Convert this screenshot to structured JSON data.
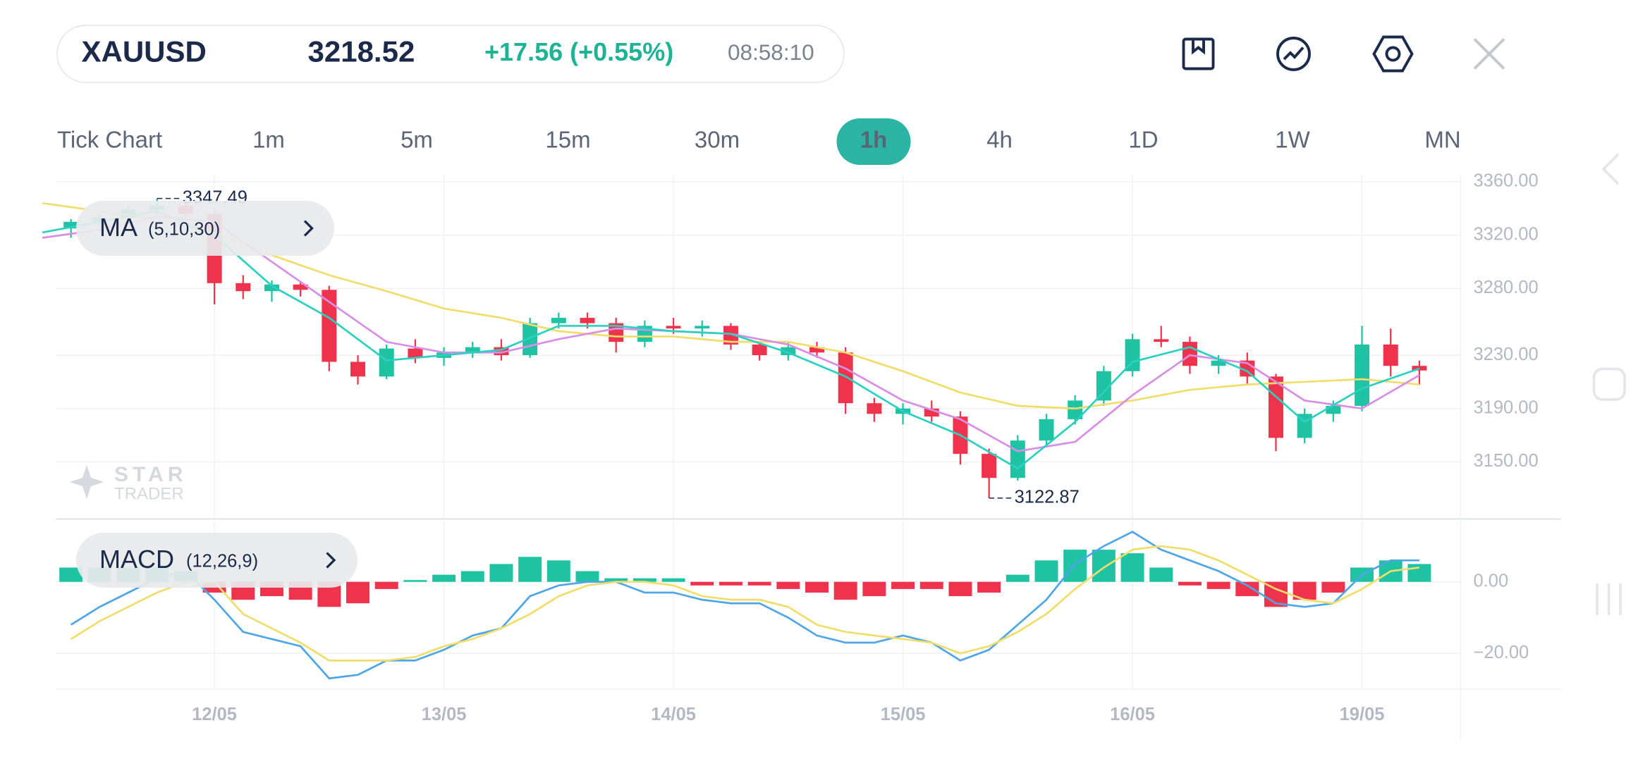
{
  "header": {
    "symbol": "XAUUSD",
    "price": "3218.52",
    "change": "+17.56 (+0.55%)",
    "time": "08:58:10"
  },
  "timeframes": [
    "Tick Chart",
    "1m",
    "5m",
    "15m",
    "30m",
    "1h",
    "4h",
    "1D",
    "1W",
    "MN"
  ],
  "selected_timeframe": "1h",
  "watermark": {
    "line1": "STAR",
    "line2": "TRADER"
  },
  "chart_data": [
    {
      "type": "candlestick",
      "indicator": "MA",
      "indicator_params": "(5,10,30)",
      "up_color": "#1fc3a4",
      "down_color": "#f0334d",
      "x": [
        -0.625,
        -0.5,
        -0.375,
        -0.25,
        -0.125,
        0,
        0.125,
        0.25,
        0.375,
        0.5,
        0.625,
        0.75,
        0.875,
        1,
        1.125,
        1.25,
        1.375,
        1.5,
        1.625,
        1.75,
        1.875,
        2,
        2.125,
        2.25,
        2.375,
        2.5,
        2.625,
        2.75,
        2.875,
        3,
        3.125,
        3.25,
        3.375,
        3.5,
        3.625,
        3.75,
        3.875,
        4,
        4.125,
        4.25,
        4.375,
        4.5,
        4.625,
        4.75,
        4.875,
        5,
        5.125,
        5.25
      ],
      "open": [
        3325,
        3330,
        3333,
        3339,
        3342,
        3336,
        3284,
        3278,
        3283,
        3279,
        3225,
        3214,
        3235,
        3228,
        3232,
        3236,
        3230,
        3254,
        3258,
        3254,
        3240,
        3252,
        3250,
        3252,
        3238,
        3230,
        3236,
        3232,
        3194,
        3186,
        3190,
        3184,
        3156,
        3138,
        3166,
        3182,
        3196,
        3218,
        3242,
        3240,
        3222,
        3226,
        3214,
        3168,
        3186,
        3192,
        3238,
        3222
      ],
      "high": [
        3332,
        3336,
        3342,
        3347.49,
        3345,
        3338,
        3290,
        3286,
        3285,
        3282,
        3230,
        3238,
        3242,
        3236,
        3240,
        3242,
        3258,
        3262,
        3262,
        3258,
        3256,
        3258,
        3256,
        3254,
        3240,
        3240,
        3240,
        3236,
        3198,
        3194,
        3196,
        3188,
        3160,
        3170,
        3186,
        3200,
        3222,
        3246,
        3252,
        3244,
        3230,
        3232,
        3216,
        3190,
        3196,
        3252,
        3250,
        3226
      ],
      "low": [
        3318,
        3326,
        3330,
        3335,
        3332,
        3268,
        3272,
        3270,
        3274,
        3218,
        3208,
        3212,
        3224,
        3222,
        3228,
        3226,
        3228,
        3250,
        3250,
        3232,
        3236,
        3246,
        3244,
        3234,
        3226,
        3226,
        3228,
        3186,
        3180,
        3178,
        3180,
        3148,
        3122.87,
        3136,
        3162,
        3178,
        3192,
        3214,
        3236,
        3216,
        3216,
        3208,
        3158,
        3164,
        3180,
        3188,
        3214,
        3208
      ],
      "close": [
        3330,
        3333,
        3339,
        3342,
        3336,
        3284,
        3278,
        3283,
        3279,
        3225,
        3214,
        3235,
        3228,
        3232,
        3236,
        3230,
        3254,
        3258,
        3254,
        3240,
        3252,
        3250,
        3252,
        3238,
        3230,
        3236,
        3232,
        3194,
        3186,
        3190,
        3184,
        3156,
        3138,
        3166,
        3182,
        3196,
        3218,
        3242,
        3240,
        3222,
        3226,
        3214,
        3168,
        3186,
        3192,
        3238,
        3222,
        3218.52
      ],
      "ma": {
        "x": [
          -0.75,
          -0.5,
          -0.25,
          0,
          0.25,
          0.5,
          0.75,
          1,
          1.25,
          1.5,
          1.75,
          2,
          2.25,
          2.5,
          2.75,
          3,
          3.25,
          3.5,
          3.75,
          4,
          4.25,
          4.5,
          4.75,
          5,
          5.25
        ],
        "series": [
          {
            "color": "#f0dd6a",
            "values": [
              3344,
              3338,
              3332,
              3322,
              3305,
              3290,
              3278,
              3265,
              3258,
              3248,
              3244,
              3244,
              3240,
              3240,
              3232,
              3218,
              3202,
              3192,
              3190,
              3196,
              3204,
              3208,
              3210,
              3212,
              3208
            ]
          },
          {
            "color": "#d98ee6",
            "values": [
              3318,
              3324,
              3334,
              3330,
              3300,
              3270,
              3240,
              3232,
              3232,
              3242,
              3250,
              3248,
              3246,
              3238,
              3220,
              3196,
              3182,
              3158,
              3165,
              3200,
              3230,
              3224,
              3196,
              3190,
              3215
            ]
          },
          {
            "color": "#2ad0c0",
            "values": [
              3322,
              3330,
              3338,
              3320,
              3282,
              3258,
              3226,
              3230,
              3234,
              3252,
              3252,
              3248,
              3246,
              3232,
              3214,
              3188,
              3170,
              3145,
              3180,
              3225,
              3236,
              3218,
              3180,
              3205,
              3220
            ]
          }
        ]
      },
      "xlim": [
        -0.69,
        5.43
      ],
      "ylim": [
        3108,
        3360
      ],
      "yticks": [
        {
          "value": 3360,
          "label": "3360.00"
        },
        {
          "value": 3320,
          "label": "3320.00"
        },
        {
          "value": 3280,
          "label": "3280.00"
        },
        {
          "value": 3230,
          "label": "3230.00"
        },
        {
          "value": 3190,
          "label": "3190.00"
        },
        {
          "value": 3150,
          "label": "3150.00"
        }
      ],
      "grid": true
    },
    {
      "type": "macd",
      "indicator": "MACD",
      "indicator_params": "(12,26,9)",
      "positive_color": "#1fc3a4",
      "negative_color": "#f0334d",
      "x": [
        -0.625,
        -0.5,
        -0.375,
        -0.25,
        -0.125,
        0,
        0.125,
        0.25,
        0.375,
        0.5,
        0.625,
        0.75,
        0.875,
        1,
        1.125,
        1.25,
        1.375,
        1.5,
        1.625,
        1.75,
        1.875,
        2,
        2.125,
        2.25,
        2.375,
        2.5,
        2.625,
        2.75,
        2.875,
        3,
        3.125,
        3.25,
        3.375,
        3.5,
        3.625,
        3.75,
        3.875,
        4,
        4.125,
        4.25,
        4.375,
        4.5,
        4.625,
        4.75,
        4.875,
        5,
        5.125,
        5.25
      ],
      "histogram": [
        4,
        4,
        4,
        4,
        3,
        -3,
        -5,
        -4,
        -5,
        -7,
        -6,
        -2,
        0.5,
        2,
        3,
        5,
        7,
        6,
        3,
        1,
        1,
        1,
        -1,
        -1,
        -1,
        -2,
        -3,
        -5,
        -4,
        -2,
        -2,
        -4,
        -3,
        2,
        6,
        9,
        9,
        8,
        4,
        -1,
        -2,
        -4,
        -7,
        -5,
        -3,
        4,
        6,
        5
      ],
      "series": [
        {
          "color": "#4ea6e8",
          "values": [
            -12,
            -7,
            -3,
            1,
            3,
            -5,
            -14,
            -16,
            -18,
            -27,
            -26,
            -22,
            -22,
            -19,
            -15,
            -13,
            -4,
            -1,
            0,
            0,
            -3,
            -3,
            -5,
            -6,
            -6,
            -10,
            -15,
            -17,
            -17,
            -15,
            -17,
            -22,
            -19,
            -12,
            -5,
            5,
            10,
            14,
            9,
            6,
            3,
            -1,
            -6,
            -7,
            -6,
            2,
            6,
            6
          ]
        },
        {
          "color": "#f0dd6a",
          "values": [
            -16,
            -11,
            -7,
            -3,
            0,
            0,
            -9,
            -13,
            -17,
            -22,
            -22,
            -22,
            -21,
            -18,
            -16,
            -13,
            -9,
            -4,
            -1,
            0,
            0,
            -1,
            -4,
            -5,
            -5,
            -7,
            -12,
            -14,
            -15,
            -16,
            -17,
            -20,
            -18,
            -14,
            -9,
            -2,
            4,
            9,
            10,
            9,
            6,
            2,
            -2,
            -5,
            -6,
            -2,
            3,
            4
          ]
        }
      ],
      "xlim": [
        -0.69,
        5.43
      ],
      "ylim": [
        -30,
        17
      ],
      "xticks": [
        {
          "value": 0,
          "label": "12/05"
        },
        {
          "value": 1,
          "label": "13/05"
        },
        {
          "value": 2,
          "label": "14/05"
        },
        {
          "value": 3,
          "label": "15/05"
        },
        {
          "value": 4,
          "label": "16/05"
        },
        {
          "value": 5,
          "label": "19/05"
        }
      ],
      "yticks": [
        {
          "value": 0,
          "label": "0.00"
        },
        {
          "value": -20,
          "label": "−20.00"
        }
      ],
      "grid": true
    }
  ]
}
